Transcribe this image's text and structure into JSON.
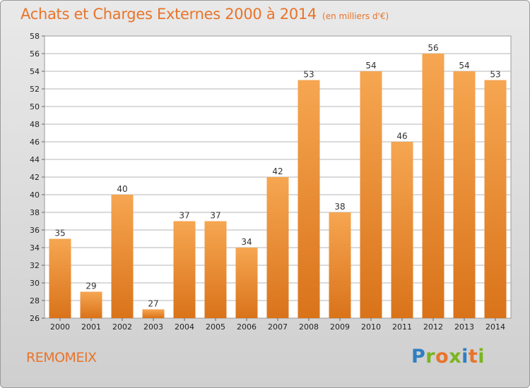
{
  "header": {
    "title": "Achats et Charges Externes 2000 à 2014",
    "subtitle": "(en milliers d'€)"
  },
  "footer": {
    "location": "REMOMEIX",
    "logo_letters": [
      "P",
      "r",
      "o",
      "x",
      "i",
      "t",
      "i"
    ],
    "logo_colors": [
      "#2f7fc1",
      "#7ab51d",
      "#e8742a",
      "#7ab51d",
      "#2f7fc1",
      "#e8742a",
      "#7ab51d"
    ]
  },
  "colors": {
    "bar_top": "#f6a651",
    "bar_bottom": "#d9731a",
    "grid": "#b5b5b5",
    "axis_text": "#222222"
  },
  "chart_data": {
    "type": "bar",
    "categories": [
      "2000",
      "2001",
      "2002",
      "2003",
      "2004",
      "2005",
      "2006",
      "2007",
      "2008",
      "2009",
      "2010",
      "2011",
      "2012",
      "2013",
      "2014"
    ],
    "values": [
      35,
      29,
      40,
      27,
      37,
      37,
      34,
      42,
      53,
      38,
      54,
      46,
      56,
      54,
      53
    ],
    "ylim": [
      26,
      58
    ],
    "yticks": [
      26,
      28,
      30,
      32,
      34,
      36,
      38,
      40,
      42,
      44,
      46,
      48,
      50,
      52,
      54,
      56,
      58
    ],
    "grid": true,
    "legend": "none"
  }
}
